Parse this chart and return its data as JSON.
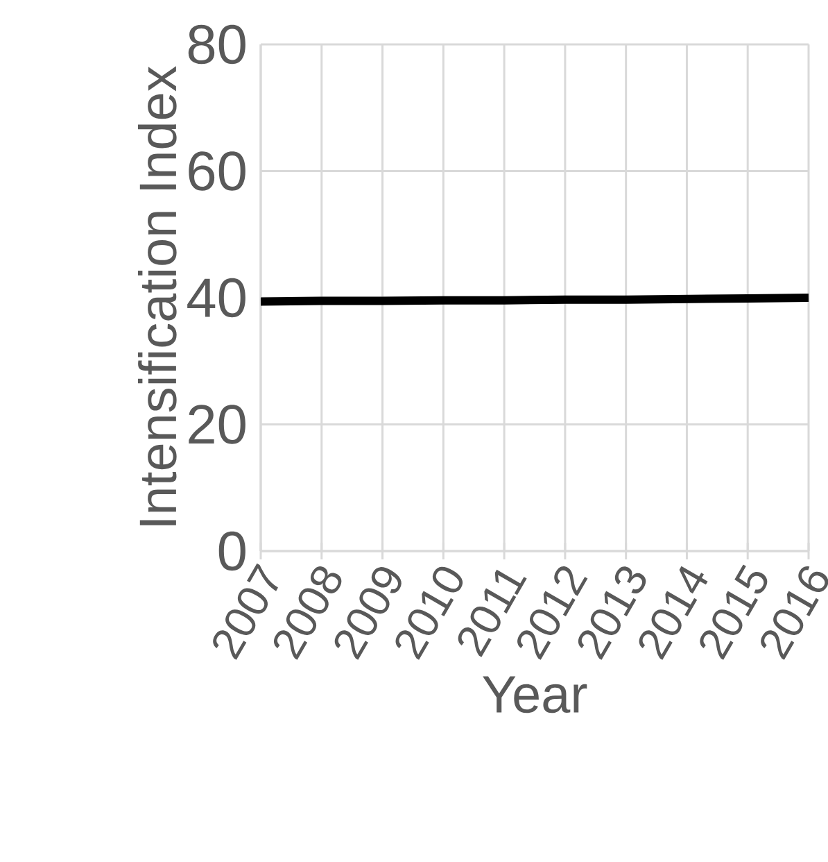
{
  "chart_data": {
    "type": "line",
    "xlabel": "Year",
    "ylabel": "Intensification Index",
    "categories": [
      "2007",
      "2008",
      "2009",
      "2010",
      "2011",
      "2012",
      "2013",
      "2014",
      "2015",
      "2016"
    ],
    "series": [
      {
        "color": "#000000",
        "values": [
          39.4,
          39.5,
          39.5,
          39.6,
          39.6,
          39.7,
          39.7,
          39.8,
          39.9,
          40.0
        ]
      }
    ],
    "ylim": [
      0,
      80
    ],
    "yticks": [
      0,
      20,
      40,
      60,
      80
    ],
    "grid": true,
    "marker": "none",
    "line_style": "solid"
  }
}
